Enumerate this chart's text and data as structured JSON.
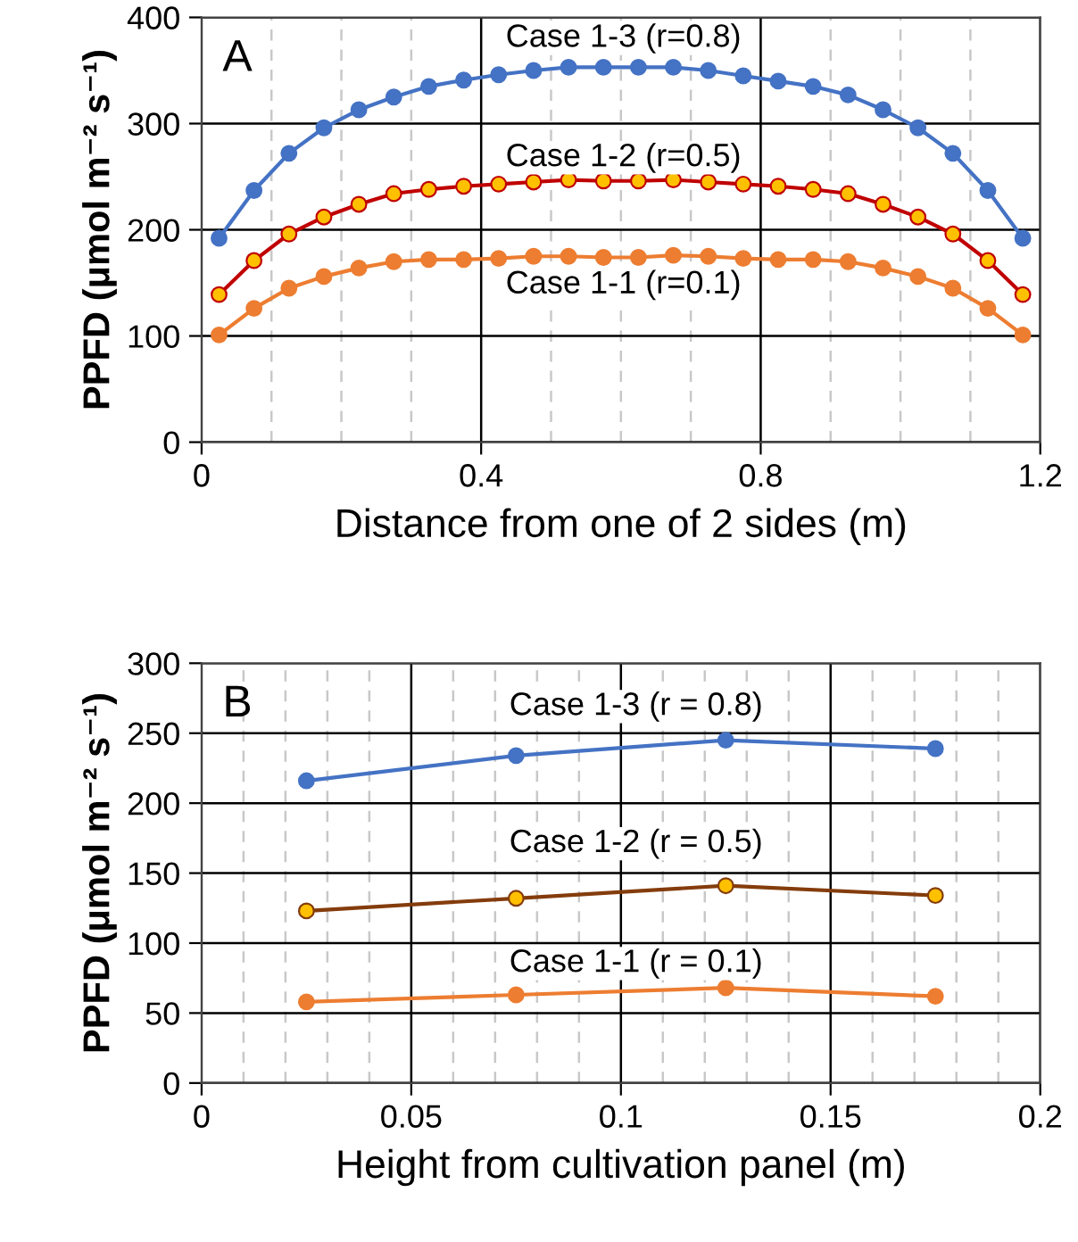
{
  "chart_data": [
    {
      "type": "line",
      "title": "A",
      "xlabel": "Distance from one of 2 sides (m)",
      "ylabel": "PPFD (μmol m⁻² s⁻¹)",
      "x": [
        0.025,
        0.075,
        0.125,
        0.175,
        0.225,
        0.275,
        0.325,
        0.375,
        0.425,
        0.475,
        0.525,
        0.575,
        0.625,
        0.675,
        0.725,
        0.775,
        0.825,
        0.875,
        0.925,
        0.975,
        1.025,
        1.075,
        1.125,
        1.175
      ],
      "series": [
        {
          "name": "Case 1-3 (r=0.8)",
          "color": "#4472c4",
          "values": [
            192,
            237,
            272,
            296,
            313,
            325,
            335,
            341,
            346,
            350,
            353,
            353,
            353,
            353,
            350,
            345,
            340,
            335,
            327,
            313,
            296,
            272,
            237,
            192
          ]
        },
        {
          "name": "Case 1-2 (r=0.5)",
          "color": "#c00000",
          "values": [
            139,
            171,
            196,
            212,
            224,
            234,
            238,
            241,
            243,
            245,
            247,
            246,
            246,
            247,
            245,
            243,
            241,
            238,
            234,
            224,
            212,
            196,
            171,
            139
          ]
        },
        {
          "name": "Case 1-1 (r=0.1)",
          "color": "#ed7d31",
          "values": [
            101,
            126,
            145,
            156,
            164,
            170,
            172,
            172,
            173,
            175,
            175,
            174,
            174,
            176,
            175,
            173,
            172,
            172,
            170,
            164,
            156,
            145,
            126,
            101
          ]
        }
      ],
      "xlim": [
        0,
        1.2
      ],
      "xticks": [
        0,
        {
          "value": 0.1,
          "label": null
        },
        {
          "value": 0.2,
          "label": null
        },
        {
          "value": 0.3,
          "label": null
        },
        0.4,
        {
          "value": 0.5,
          "label": null
        },
        {
          "value": 0.6,
          "label": null
        },
        {
          "value": 0.7,
          "label": null
        },
        0.8,
        {
          "value": 0.9,
          "label": null
        },
        {
          "value": 1.0,
          "label": null
        },
        {
          "value": 1.1,
          "label": null
        },
        1.2
      ],
      "ylim": [
        0,
        400
      ],
      "yticks": [
        0,
        100,
        200,
        300,
        400
      ],
      "grid": true,
      "marker": "circle",
      "line_style": "solid",
      "legend": false
    },
    {
      "type": "line",
      "title": "B",
      "xlabel": "Height from cultivation panel (m)",
      "ylabel": "PPFD (μmol m⁻² s⁻¹)",
      "x": [
        0.025,
        0.075,
        0.125,
        0.175
      ],
      "series": [
        {
          "name": "Case 1-3 (r = 0.8)",
          "color": "#4472c4",
          "values": [
            216,
            234,
            245,
            239
          ]
        },
        {
          "name": "Case 1-2 (r = 0.5)",
          "color": "#843c0c",
          "values": [
            123,
            132,
            141,
            134
          ]
        },
        {
          "name": "Case 1-1 (r = 0.1)",
          "color": "#ed7d31",
          "values": [
            58,
            63,
            68,
            62
          ]
        }
      ],
      "xlim": [
        0,
        0.2
      ],
      "xticks": [
        0,
        {
          "value": 0.01,
          "label": null
        },
        {
          "value": 0.02,
          "label": null
        },
        {
          "value": 0.03,
          "label": null
        },
        {
          "value": 0.04,
          "label": null
        },
        0.05,
        {
          "value": 0.06,
          "label": null
        },
        {
          "value": 0.07,
          "label": null
        },
        {
          "value": 0.08,
          "label": null
        },
        {
          "value": 0.09,
          "label": null
        },
        0.1,
        {
          "value": 0.11,
          "label": null
        },
        {
          "value": 0.12,
          "label": null
        },
        {
          "value": 0.13,
          "label": null
        },
        {
          "value": 0.14,
          "label": null
        },
        0.15,
        {
          "value": 0.16,
          "label": null
        },
        {
          "value": 0.17,
          "label": null
        },
        {
          "value": 0.18,
          "label": null
        },
        {
          "value": 0.19,
          "label": null
        },
        0.2
      ],
      "ylim": [
        0,
        300
      ],
      "yticks": [
        0,
        50,
        100,
        150,
        200,
        250,
        300
      ],
      "grid": true,
      "marker": "circle",
      "line_style": "solid",
      "legend": false
    }
  ]
}
